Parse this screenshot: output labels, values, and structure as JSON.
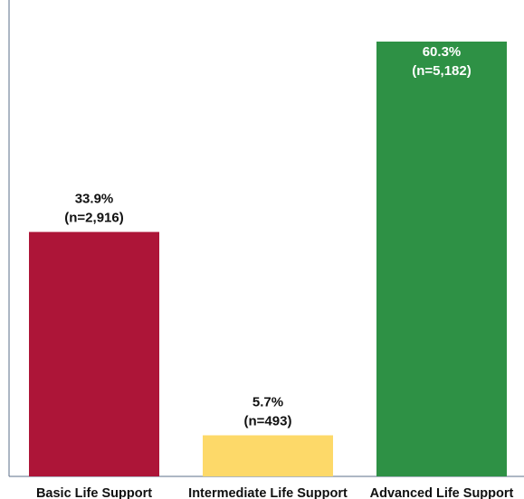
{
  "chart_data": {
    "type": "bar",
    "categories": [
      "Basic Life Support",
      "Intermediate Life Support",
      "Advanced Life Support"
    ],
    "values": [
      33.9,
      5.7,
      60.3
    ],
    "counts": [
      "2,916",
      "493",
      "5,182"
    ],
    "value_labels": [
      "33.9%",
      "5.7%",
      "60.3%"
    ],
    "count_labels": [
      "(n=2,916)",
      "(n=493)",
      "(n=5,182)"
    ],
    "colors": [
      "#ad1538",
      "#fdd969",
      "#2e9145"
    ],
    "label_inside_top": [
      false,
      false,
      true
    ],
    "ylim": [
      0,
      62
    ],
    "grid": false,
    "legend": "none"
  }
}
